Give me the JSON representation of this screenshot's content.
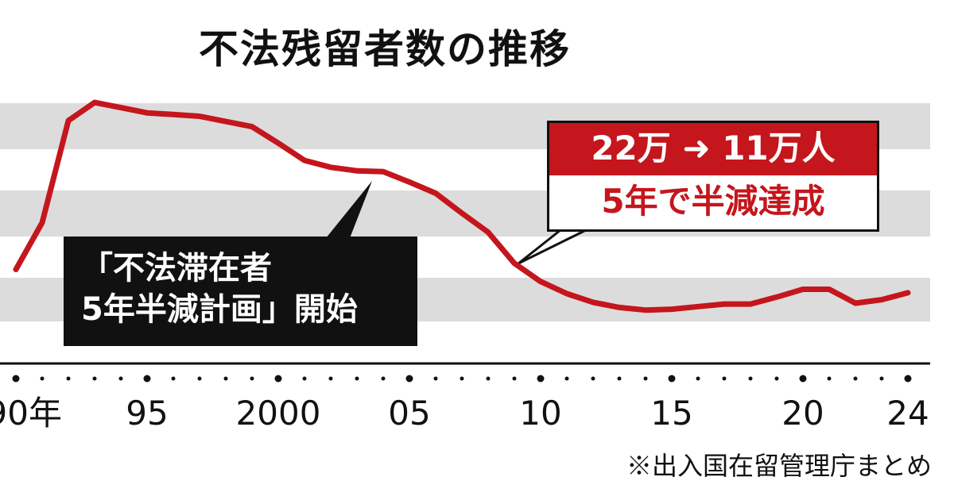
{
  "chart_data": {
    "type": "line",
    "title": "不法残留者数の推移",
    "xlabel": "",
    "ylabel": "",
    "x": [
      1990,
      1991,
      1992,
      1993,
      1994,
      1995,
      1996,
      1997,
      1998,
      1999,
      2000,
      2001,
      2002,
      2003,
      2004,
      2005,
      2006,
      2007,
      2008,
      2009,
      2010,
      2011,
      2012,
      2013,
      2014,
      2015,
      2016,
      2017,
      2018,
      2019,
      2020,
      2021,
      2022,
      2023,
      2024
    ],
    "series": [
      {
        "name": "",
        "values": [
          10.6,
          16.0,
          27.8,
          29.9,
          29.3,
          28.7,
          28.5,
          28.3,
          27.7,
          27.1,
          25.2,
          23.2,
          22.4,
          22.0,
          21.9,
          20.7,
          19.4,
          17.1,
          14.9,
          11.3,
          9.2,
          7.8,
          6.8,
          6.2,
          5.9,
          6.0,
          6.3,
          6.6,
          6.6,
          7.4,
          8.3,
          8.3,
          6.7,
          7.1,
          7.9
        ]
      }
    ],
    "ylim": [
      0,
      32
    ],
    "grid": "horizontal-bands",
    "x_ticks": [
      {
        "value": 1990,
        "label": "90年"
      },
      {
        "value": 1995,
        "label": "95"
      },
      {
        "value": 2000,
        "label": "2000"
      },
      {
        "value": 2005,
        "label": "05"
      },
      {
        "value": 2010,
        "label": "10"
      },
      {
        "value": 2015,
        "label": "15"
      },
      {
        "value": 2020,
        "label": "20"
      },
      {
        "value": 2024,
        "label": "24"
      }
    ],
    "annotations": [
      {
        "kind": "black-callout",
        "year": 2004,
        "lines": [
          "「不法滞在者",
          "5年半減計画」開始"
        ]
      },
      {
        "kind": "red-callout",
        "year": 2009,
        "head": "22万 ➜ 11万人",
        "sub": "5年で半減達成"
      }
    ]
  },
  "source_note": "※出入国在留管理庁まとめ",
  "colors": {
    "line": "#c4161c",
    "band": "#dcdcdc",
    "axis": "#111111",
    "accent": "#c4161c"
  }
}
